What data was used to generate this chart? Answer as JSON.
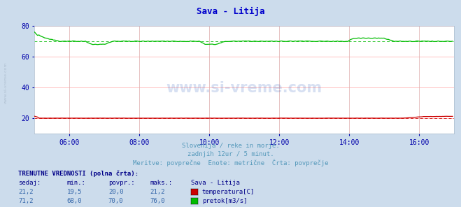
{
  "title": "Sava - Litija",
  "title_color": "#0000cc",
  "bg_color": "#ccdcec",
  "plot_bg_color": "#ffffff",
  "grid_color": "#ffaaaa",
  "grid_color_v": "#ddaaaa",
  "ylabel_color": "#0000aa",
  "xlabel_color": "#0000aa",
  "watermark": "www.si-vreme.com",
  "subtitle1": "Slovenija / reke in morje.",
  "subtitle2": "zadnjih 12ur / 5 minut.",
  "subtitle3": "Meritve: povprečne  Enote: metrične  Črta: povprečje",
  "subtitle_color": "#5599bb",
  "xmin": 0,
  "xmax": 288,
  "ymin": 10,
  "ymax": 80,
  "yticks": [
    20,
    40,
    60,
    80
  ],
  "xtick_labels": [
    "06:00",
    "08:00",
    "10:00",
    "12:00",
    "14:00",
    "16:00"
  ],
  "xtick_positions": [
    24,
    72,
    120,
    168,
    216,
    264
  ],
  "temp_color": "#cc0000",
  "flow_color": "#00bb00",
  "temp_avg": 20.0,
  "flow_avg": 70.0,
  "legend_header": "TRENUTNE VREDNOSTI (polna črta):",
  "legend_cols": [
    "sedaj:",
    "min.:",
    "povpr.:",
    "maks.:",
    "Sava - Litija"
  ],
  "temp_row": [
    "21,2",
    "19,5",
    "20,0",
    "21,2",
    "temperatura[C]"
  ],
  "flow_row": [
    "71,2",
    "68,0",
    "70,0",
    "76,0",
    "pretok[m3/s]"
  ],
  "n_points": 288,
  "figsize": [
    6.59,
    2.96
  ],
  "dpi": 100
}
